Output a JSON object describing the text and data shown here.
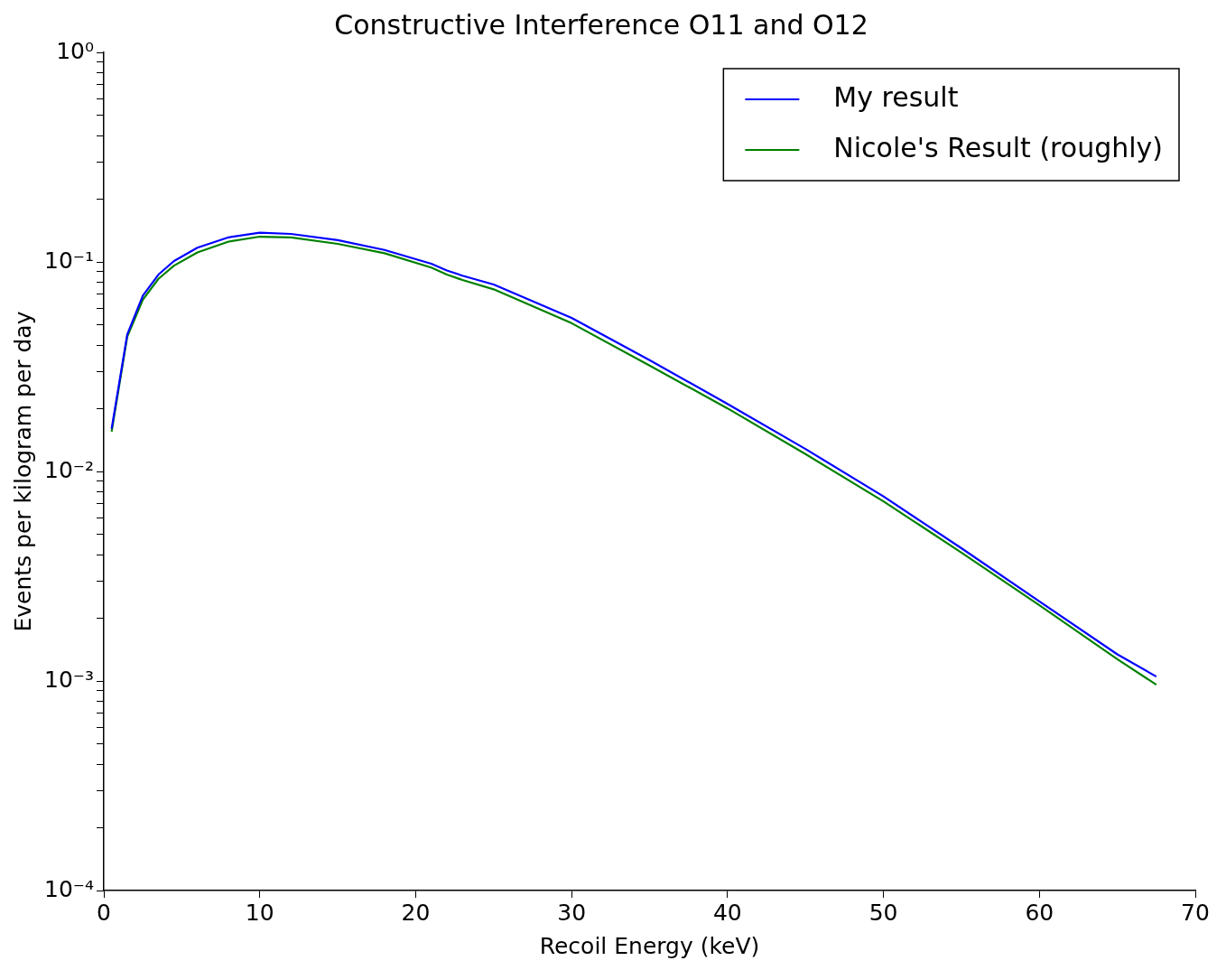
{
  "chart_data": {
    "type": "line",
    "title": "Constructive Interference O11 and O12",
    "xlabel": "Recoil Energy (keV)",
    "ylabel": "Events per kilogram per day",
    "x": [
      0.5,
      1.5,
      2.5,
      3.5,
      4.5,
      6,
      8,
      10,
      12,
      15,
      18,
      21,
      22,
      23,
      25,
      30,
      35,
      40,
      45,
      50,
      55,
      60,
      65,
      67.5
    ],
    "series": [
      {
        "name": "My result",
        "color": "#0000ff",
        "values": [
          0.016,
          0.045,
          0.069,
          0.087,
          0.101,
          0.117,
          0.131,
          0.138,
          0.136,
          0.127,
          0.114,
          0.098,
          0.091,
          0.086,
          0.078,
          0.054,
          0.034,
          0.021,
          0.0128,
          0.0076,
          0.0043,
          0.0024,
          0.00134,
          0.00105
        ]
      },
      {
        "name": "Nicole's Result (roughly)",
        "color": "#008000",
        "values": [
          0.0155,
          0.044,
          0.066,
          0.083,
          0.096,
          0.111,
          0.125,
          0.132,
          0.131,
          0.122,
          0.11,
          0.094,
          0.087,
          0.082,
          0.074,
          0.051,
          0.032,
          0.02,
          0.0121,
          0.0072,
          0.0041,
          0.0023,
          0.00127,
          0.00096
        ]
      }
    ],
    "xlim": [
      0,
      70
    ],
    "xticks": [
      0,
      10,
      20,
      30,
      40,
      50,
      60,
      70
    ],
    "log": "y",
    "ylim": [
      0.0001,
      1
    ],
    "yticks": [
      {
        "value": 0.0001,
        "label": "10⁻⁴"
      },
      {
        "value": 0.0002,
        "label": null
      },
      {
        "value": 0.0003,
        "label": null
      },
      {
        "value": 0.0004,
        "label": null
      },
      {
        "value": 0.0005,
        "label": null
      },
      {
        "value": 0.0006,
        "label": null
      },
      {
        "value": 0.0007,
        "label": null
      },
      {
        "value": 0.0008,
        "label": null
      },
      {
        "value": 0.0009,
        "label": null
      },
      {
        "value": 0.001,
        "label": "10⁻³"
      },
      {
        "value": 0.002,
        "label": null
      },
      {
        "value": 0.003,
        "label": null
      },
      {
        "value": 0.004,
        "label": null
      },
      {
        "value": 0.005,
        "label": null
      },
      {
        "value": 0.006,
        "label": null
      },
      {
        "value": 0.007,
        "label": null
      },
      {
        "value": 0.008,
        "label": null
      },
      {
        "value": 0.009,
        "label": null
      },
      {
        "value": 0.01,
        "label": "10⁻²"
      },
      {
        "value": 0.02,
        "label": null
      },
      {
        "value": 0.03,
        "label": null
      },
      {
        "value": 0.04,
        "label": null
      },
      {
        "value": 0.05,
        "label": null
      },
      {
        "value": 0.06,
        "label": null
      },
      {
        "value": 0.07,
        "label": null
      },
      {
        "value": 0.08,
        "label": null
      },
      {
        "value": 0.09,
        "label": null
      },
      {
        "value": 0.1,
        "label": "10⁻¹"
      },
      {
        "value": 0.2,
        "label": null
      },
      {
        "value": 0.3,
        "label": null
      },
      {
        "value": 0.4,
        "label": null
      },
      {
        "value": 0.5,
        "label": null
      },
      {
        "value": 0.6,
        "label": null
      },
      {
        "value": 0.7,
        "label": null
      },
      {
        "value": 0.8,
        "label": null
      },
      {
        "value": 0.9,
        "label": null
      },
      {
        "value": 1,
        "label": "10⁰"
      }
    ],
    "grid": false,
    "legend": "top right",
    "marker": "none",
    "line_style": "solid"
  }
}
